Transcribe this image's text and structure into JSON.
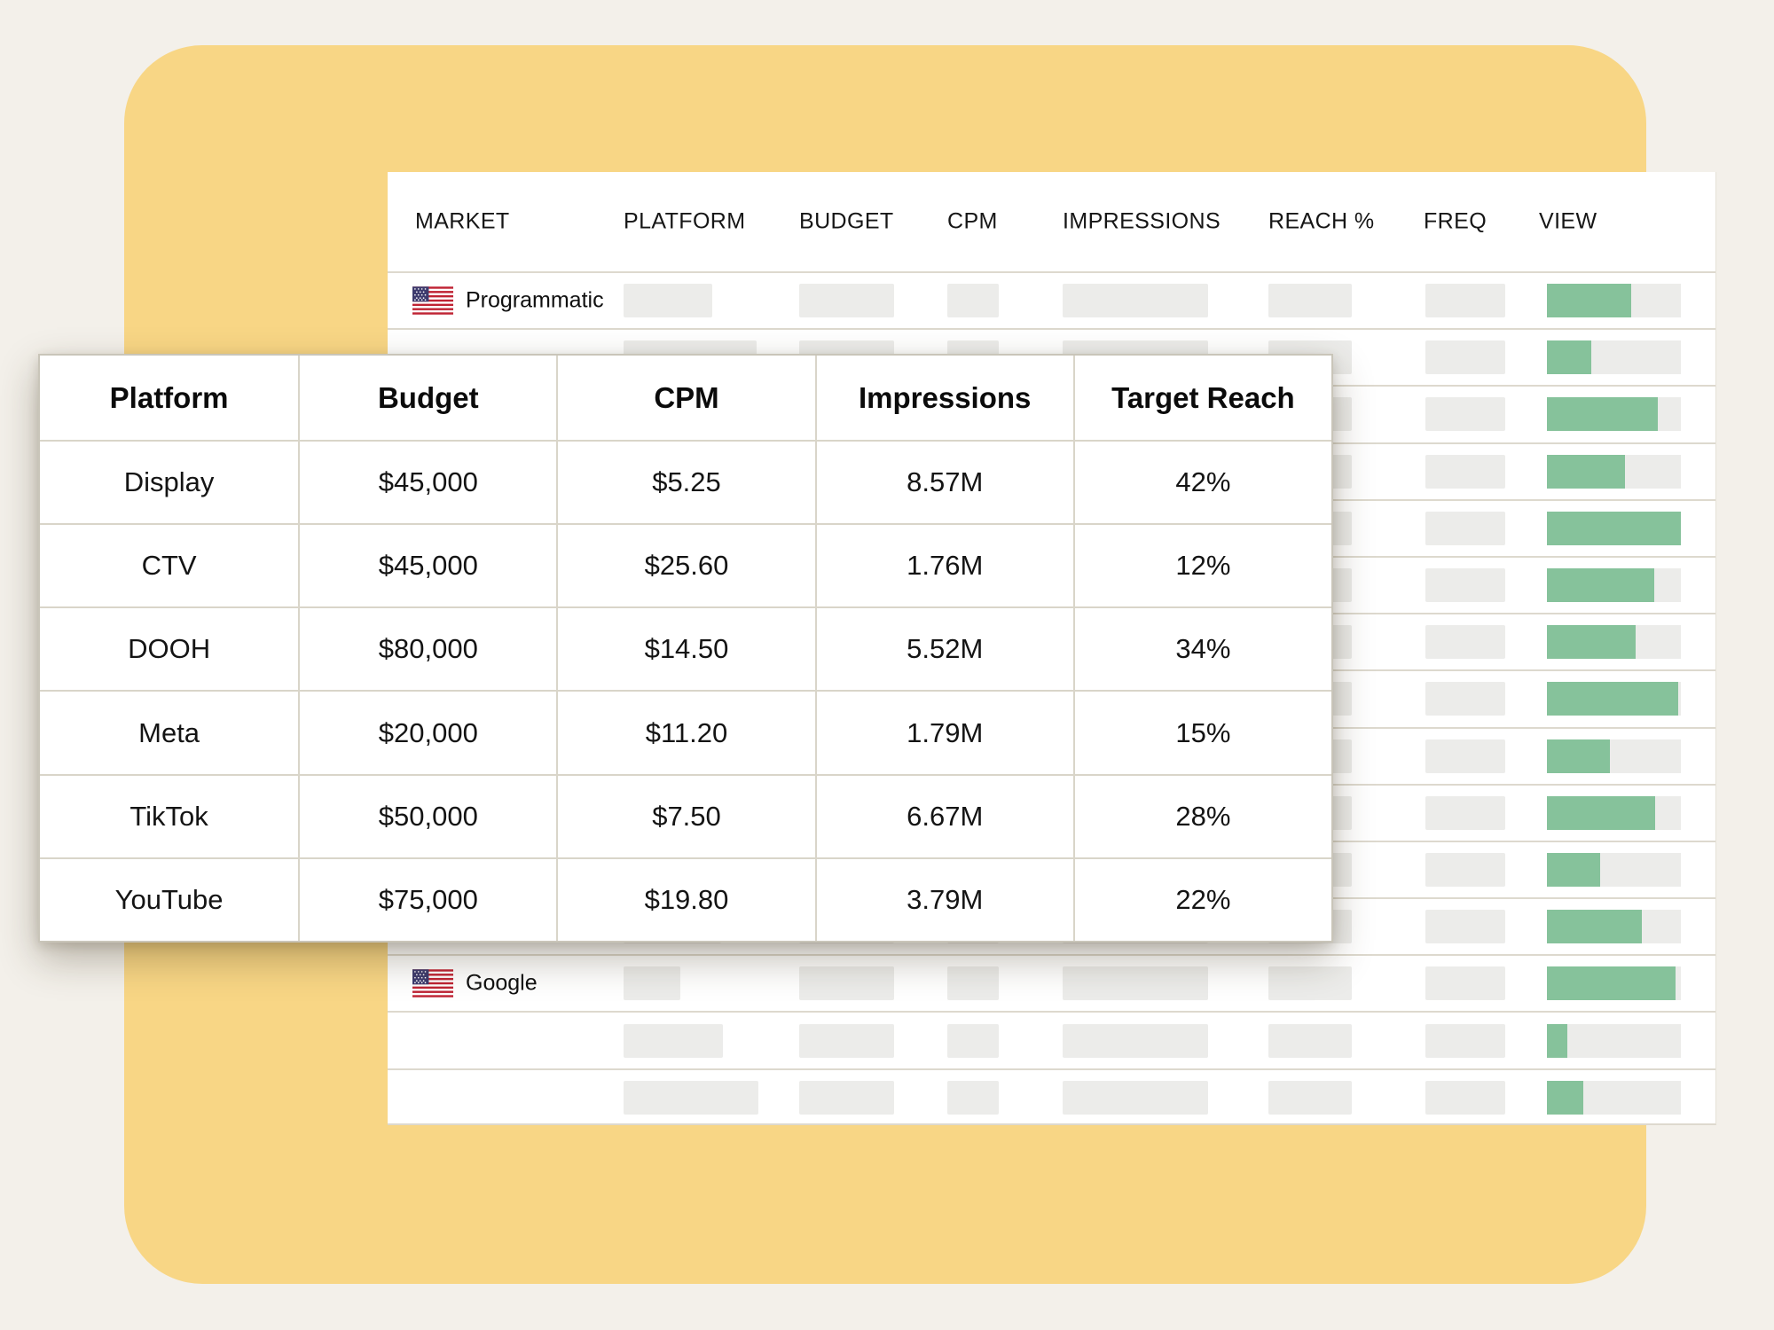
{
  "colors": {
    "page_background": "#f3f0ea",
    "card_yellow": "#f8d685",
    "table_white": "#ffffff",
    "placeholder_gray": "#ececea",
    "progress_green": "#86c29b",
    "divider": "#ddd9ce",
    "text_dark": "#101010"
  },
  "background_table": {
    "columns": [
      "MARKET",
      "PLATFORM",
      "BUDGET",
      "CPM",
      "IMPRESSIONS",
      "REACH %",
      "FREQ",
      "VIEW"
    ],
    "rows": [
      {
        "label": "Programmatic",
        "flag_icon": "us-flag-icon",
        "platform_w": 100,
        "view_percent": 63
      },
      {
        "platform_w": 150,
        "view_percent": 33
      },
      {
        "platform_w": 130,
        "view_percent": 83
      },
      {
        "platform_w": 95,
        "view_percent": 58
      },
      {
        "platform_w": 120,
        "view_percent": 100
      },
      {
        "platform_w": 105,
        "view_percent": 80
      },
      {
        "platform_w": 140,
        "view_percent": 66
      },
      {
        "platform_w": 100,
        "view_percent": 98
      },
      {
        "platform_w": 115,
        "view_percent": 47
      },
      {
        "platform_w": 125,
        "view_percent": 81
      },
      {
        "platform_w": 100,
        "view_percent": 40
      },
      {
        "platform_w": 110,
        "view_percent": 71
      },
      {
        "label": "Google",
        "flag_icon": "us-flag-icon",
        "platform_w": 64,
        "view_percent": 96
      },
      {
        "platform_w": 112,
        "view_percent": 15
      },
      {
        "platform_w": 152,
        "view_percent": 27
      }
    ]
  },
  "popup_table": {
    "columns": [
      "Platform",
      "Budget",
      "CPM",
      "Impressions",
      "Target Reach"
    ],
    "rows": [
      [
        "Display",
        "$45,000",
        "$5.25",
        "8.57M",
        "42%"
      ],
      [
        "CTV",
        "$45,000",
        "$25.60",
        "1.76M",
        "12%"
      ],
      [
        "DOOH",
        "$80,000",
        "$14.50",
        "5.52M",
        "34%"
      ],
      [
        "Meta",
        "$20,000",
        "$11.20",
        "1.79M",
        "15%"
      ],
      [
        "TikTok",
        "$50,000",
        "$7.50",
        "6.67M",
        "28%"
      ],
      [
        "YouTube",
        "$75,000",
        "$19.80",
        "3.79M",
        "22%"
      ]
    ]
  }
}
